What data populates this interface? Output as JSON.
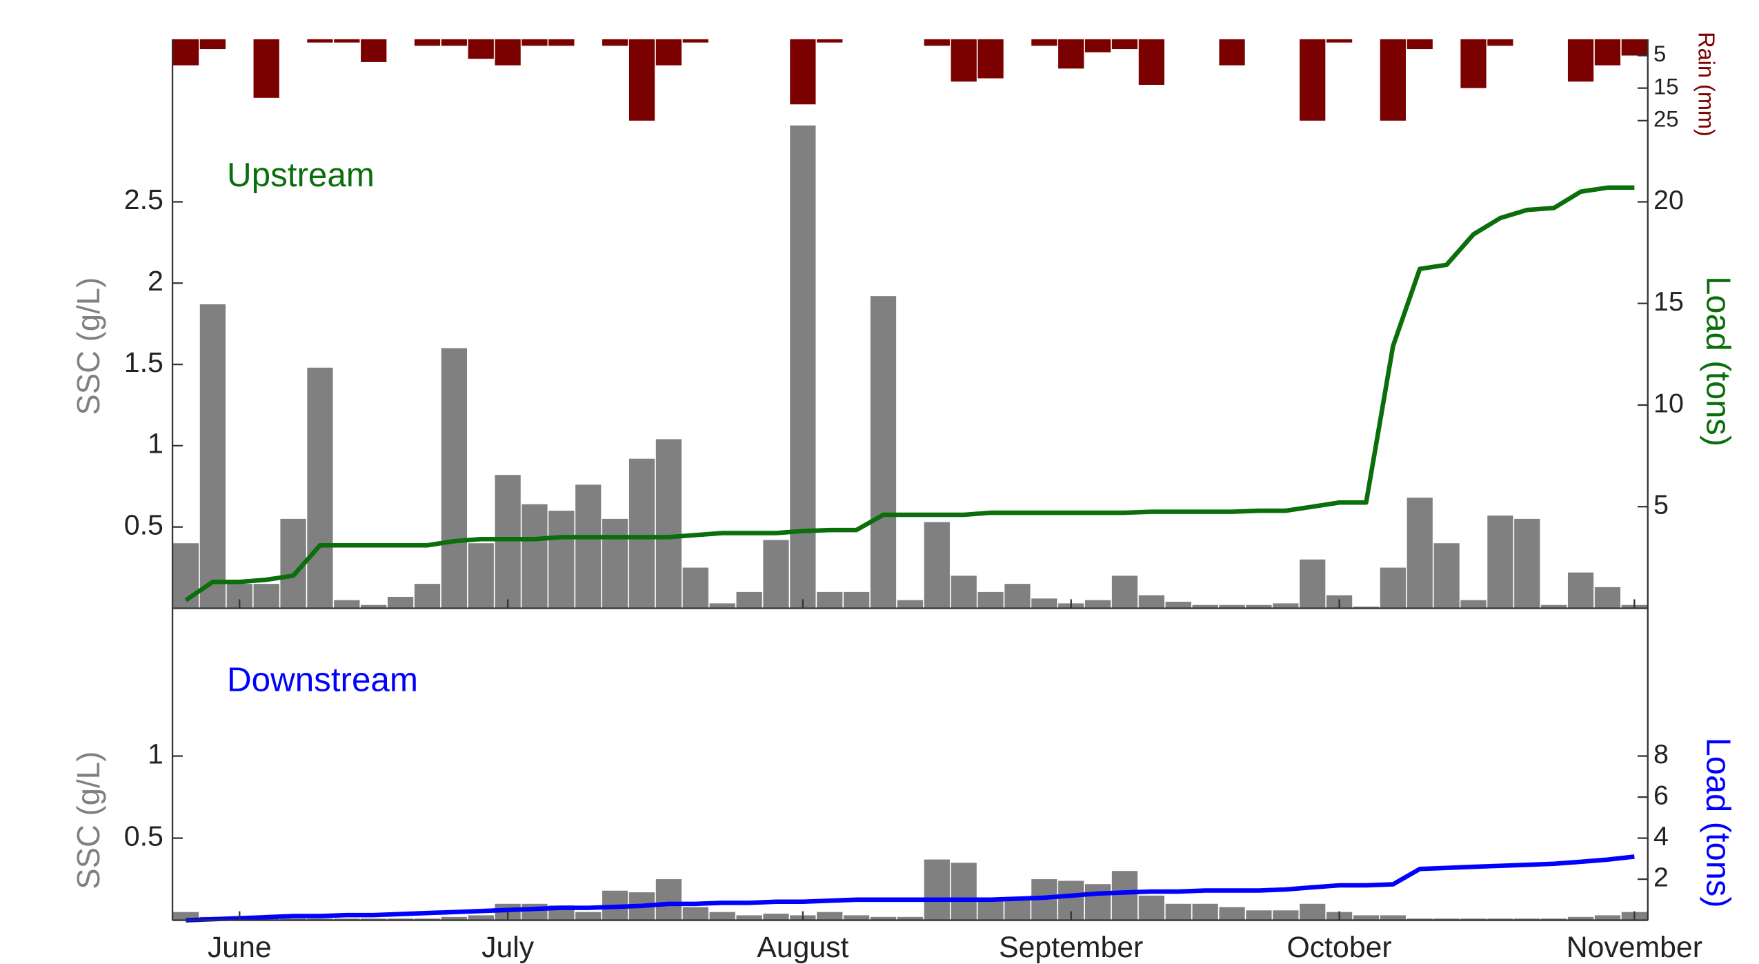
{
  "chart_data": [
    {
      "type": "bar",
      "title": "Upstream",
      "ylabel": "SSC (g/L)",
      "y2label": "Load (tons)",
      "y3label": "Rain (mm)",
      "ylim": [
        0,
        3.5
      ],
      "yticks": [
        0.5,
        1,
        1.5,
        2,
        2.5
      ],
      "y2lim": [
        0,
        28
      ],
      "y2ticks": [
        5,
        10,
        15,
        20
      ],
      "y3lim": [
        0,
        30
      ],
      "y3ticks": [
        5,
        15,
        25
      ],
      "y3_inverted": true,
      "series": [
        {
          "type": "bar",
          "color": "#808080",
          "values": [
            0.4,
            1.87,
            0.15,
            0.15,
            0.55,
            1.48,
            0.05,
            0.02,
            0.07,
            0.15,
            1.6,
            0.4,
            0.82,
            0.64,
            0.6,
            0.76,
            0.55,
            0.92,
            1.04,
            0.25,
            0.03,
            0.1,
            0.42,
            2.97,
            0.1,
            0.1,
            1.92,
            0.05,
            0.53,
            0.2,
            0.1,
            0.15,
            0.06,
            0.03,
            0.05,
            0.2,
            0.08,
            0.04,
            0.02,
            0.02,
            0.02,
            0.03,
            0.3,
            0.08,
            0.01,
            0.25,
            0.68,
            0.4,
            0.05,
            0.57,
            0.55,
            0.02,
            0.22,
            0.13,
            0.02
          ]
        },
        {
          "type": "line",
          "axis": "y2",
          "color": "#0a6e0a",
          "values": [
            0.4,
            1.3,
            1.3,
            1.4,
            1.6,
            3.1,
            3.1,
            3.1,
            3.1,
            3.1,
            3.3,
            3.4,
            3.4,
            3.4,
            3.5,
            3.5,
            3.5,
            3.5,
            3.5,
            3.6,
            3.7,
            3.7,
            3.7,
            3.8,
            3.85,
            3.85,
            4.6,
            4.6,
            4.6,
            4.6,
            4.7,
            4.7,
            4.7,
            4.7,
            4.7,
            4.7,
            4.75,
            4.75,
            4.75,
            4.75,
            4.8,
            4.8,
            5.0,
            5.2,
            5.2,
            12.9,
            16.7,
            16.9,
            18.4,
            19.2,
            19.6,
            19.7,
            20.5,
            20.7,
            20.7
          ]
        },
        {
          "type": "bar",
          "axis": "y3",
          "color": "#7b0000",
          "values": [
            8,
            3,
            0,
            18,
            0,
            1,
            1,
            7,
            0,
            2,
            2,
            6,
            8,
            2,
            2,
            0,
            2,
            25,
            8,
            1,
            0,
            0,
            0,
            20,
            1,
            0,
            0,
            0,
            2,
            13,
            12,
            0,
            2,
            9,
            4,
            3,
            14,
            0,
            0,
            8,
            0,
            0,
            25,
            1,
            0,
            25,
            3,
            0,
            15,
            2,
            0,
            0,
            13,
            8,
            5
          ]
        }
      ]
    },
    {
      "type": "bar",
      "title": "Downstream",
      "ylabel": "SSC (g/L)",
      "y2label": "Load (tons)",
      "ylim": [
        0,
        1.9
      ],
      "yticks": [
        0.5,
        1
      ],
      "y2lim": [
        0,
        15.2
      ],
      "y2ticks": [
        2,
        4,
        6,
        8
      ],
      "categories": [
        null,
        null,
        "June",
        null,
        null,
        null,
        null,
        null,
        null,
        null,
        null,
        null,
        "July",
        null,
        null,
        null,
        null,
        null,
        null,
        null,
        null,
        null,
        null,
        "August",
        null,
        null,
        null,
        null,
        null,
        null,
        null,
        null,
        null,
        "September",
        null,
        null,
        null,
        null,
        null,
        null,
        null,
        null,
        null,
        "October",
        null,
        null,
        null,
        null,
        null,
        null,
        null,
        null,
        null,
        null,
        "November"
      ],
      "series": [
        {
          "type": "bar",
          "color": "#808080",
          "values": [
            0.05,
            0.02,
            0.01,
            0.01,
            0.01,
            0.01,
            0.01,
            0.01,
            0.01,
            0.01,
            0.02,
            0.03,
            0.1,
            0.1,
            0.09,
            0.05,
            0.18,
            0.17,
            0.25,
            0.08,
            0.05,
            0.03,
            0.04,
            0.03,
            0.05,
            0.03,
            0.02,
            0.02,
            0.37,
            0.35,
            0.12,
            0.12,
            0.25,
            0.24,
            0.22,
            0.3,
            0.15,
            0.1,
            0.1,
            0.08,
            0.06,
            0.06,
            0.1,
            0.05,
            0.03,
            0.03,
            0.01,
            0.01,
            0.01,
            0.01,
            0.01,
            0.01,
            0.02,
            0.03,
            0.05
          ]
        },
        {
          "type": "line",
          "axis": "y2",
          "color": "#0000ff",
          "values": [
            0.0,
            0.05,
            0.1,
            0.15,
            0.2,
            0.2,
            0.25,
            0.25,
            0.3,
            0.35,
            0.4,
            0.45,
            0.5,
            0.55,
            0.6,
            0.6,
            0.65,
            0.7,
            0.8,
            0.8,
            0.85,
            0.85,
            0.9,
            0.9,
            0.95,
            1.0,
            1.0,
            1.0,
            1.0,
            1.0,
            1.0,
            1.05,
            1.1,
            1.2,
            1.3,
            1.35,
            1.4,
            1.4,
            1.45,
            1.45,
            1.45,
            1.5,
            1.6,
            1.7,
            1.7,
            1.75,
            2.5,
            2.55,
            2.6,
            2.65,
            2.7,
            2.75,
            2.85,
            2.95,
            3.1
          ]
        }
      ]
    }
  ]
}
